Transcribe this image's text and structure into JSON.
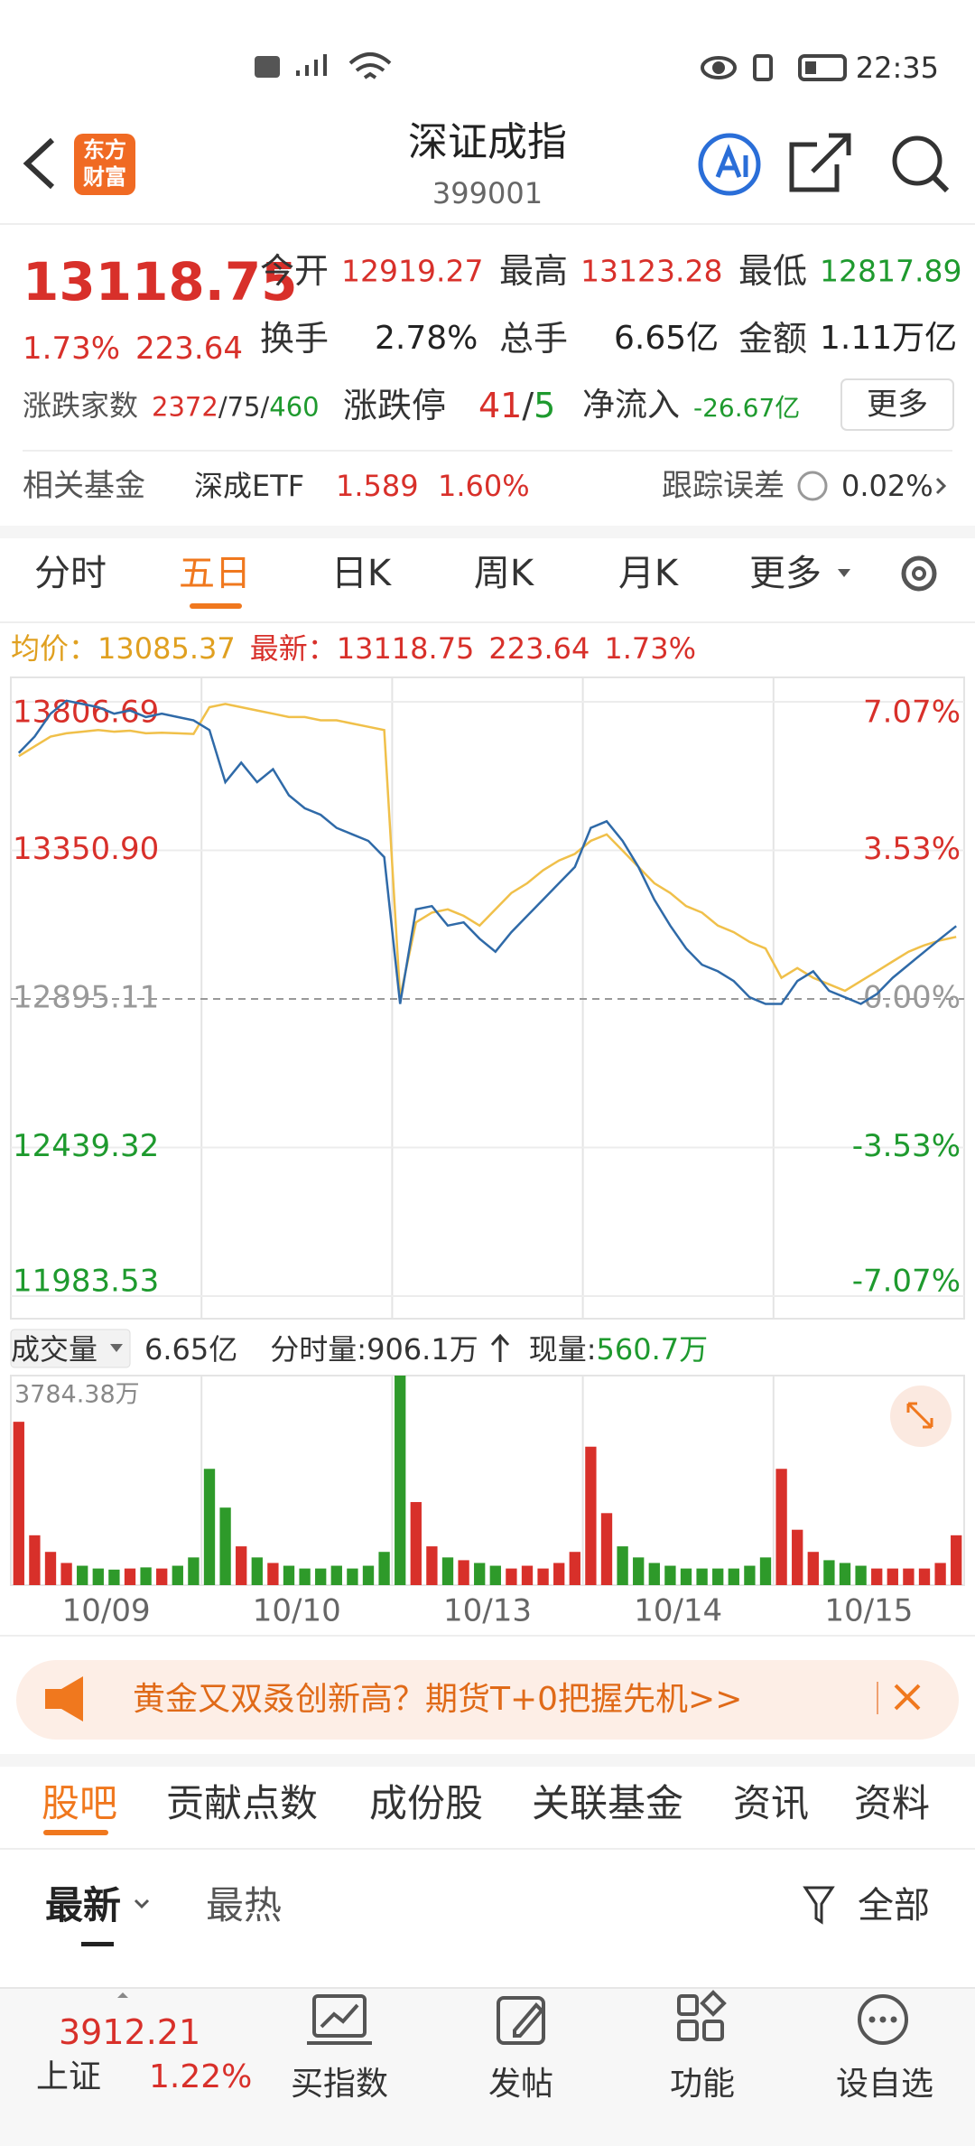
{
  "status_bar": {
    "time": "22:35"
  },
  "header": {
    "logo": [
      "东方",
      "财富"
    ],
    "title": "深证成指",
    "code": "399001"
  },
  "quote": {
    "price": "13118.75",
    "change_pct": "1.73%",
    "change": "223.64",
    "row1": [
      {
        "label": "今开",
        "value": "12919.27"
      },
      {
        "label": "最高",
        "value": "13123.28"
      },
      {
        "label": "最低",
        "value": "12817.89"
      }
    ],
    "row2": [
      {
        "label": "换手",
        "value": "2.78%"
      },
      {
        "label": "总手",
        "value": "6.65亿"
      },
      {
        "label": "金额",
        "value": "1.11万亿"
      }
    ],
    "breadth": {
      "label": "涨跌家数",
      "parts": [
        "2372",
        "/75/",
        "460"
      ]
    },
    "limit": {
      "label": "涨跌停",
      "up": "41",
      "sep": "/",
      "down": "5"
    },
    "net_flow": {
      "label": "净流入",
      "value": "-26.67亿"
    },
    "more": "更多"
  },
  "fund": {
    "label": "相关基金",
    "name": "深成ETF",
    "price": "1.589",
    "pct": "1.60%",
    "tracking_label": "跟踪误差",
    "tracking": "0.02%"
  },
  "tabs": {
    "items": [
      "分时",
      "五日",
      "日K",
      "周K",
      "月K",
      "更多"
    ],
    "active": 1
  },
  "chart_data": {
    "type": "line",
    "info": {
      "avg_label": "均价：",
      "avg": "13085.37",
      "latest_label": "最新：",
      "latest": "13118.75",
      "change": "223.64",
      "pct": "1.73%"
    },
    "ylim": [
      11983.53,
      13806.69
    ],
    "yticks": [
      11983.53,
      12439.32,
      12895.11,
      {
        "value": 13350.9,
        "label": "13350.90"
      },
      13806.69
    ],
    "y2lim": [
      -7.07,
      7.07
    ],
    "y2ticks": [
      {
        "value": -7.07,
        "label": "-7.07%"
      },
      {
        "value": -3.53,
        "label": "-3.53%"
      },
      {
        "value": 0,
        "label": "0.00%"
      },
      {
        "value": 3.53,
        "label": "3.53%"
      },
      {
        "value": 7.07,
        "label": "7.07%"
      }
    ],
    "day_labels": [
      "10/09",
      "10/10",
      "10/13",
      "10/14",
      "10/15"
    ],
    "grid": true,
    "series": [
      {
        "color": "#2f6aa8",
        "values": [
          13650,
          13700,
          13770,
          13810,
          13800,
          13790,
          13770,
          13780,
          13760,
          13770,
          13760,
          13750,
          13720,
          13560,
          13620,
          13560,
          13600,
          13520,
          13480,
          13460,
          13420,
          13400,
          13380,
          13330,
          12880,
          13170,
          13180,
          13120,
          13130,
          13080,
          13040,
          13100,
          13150,
          13200,
          13250,
          13300,
          13420,
          13440,
          13380,
          13300,
          13200,
          13120,
          13050,
          13000,
          12980,
          12950,
          12900,
          12880,
          12880,
          12950,
          12980,
          12920,
          12900,
          12880,
          12910,
          12960,
          13000,
          13040,
          13080,
          13118.75
        ]
      },
      {
        "color": "#f0c04a",
        "values": [
          13640,
          13670,
          13700,
          13710,
          13715,
          13720,
          13715,
          13718,
          13710,
          13712,
          13710,
          13708,
          13790,
          13800,
          13790,
          13780,
          13770,
          13760,
          13760,
          13750,
          13750,
          13740,
          13730,
          13720,
          12900,
          13130,
          13160,
          13170,
          13150,
          13120,
          13170,
          13220,
          13250,
          13290,
          13320,
          13340,
          13380,
          13400,
          13350,
          13300,
          13250,
          13220,
          13180,
          13160,
          13120,
          13100,
          13070,
          13050,
          12960,
          12990,
          12960,
          12940,
          12920,
          12950,
          12980,
          13010,
          13040,
          13060,
          13075,
          13085.37
        ]
      }
    ],
    "volume": {
      "label": "成交量",
      "total": "6.65亿",
      "tick_label": "分时量:",
      "tick": "906.1万",
      "now_label": "现量:",
      "now": "560.7万",
      "ylim": [
        0,
        3784.38
      ],
      "yticks": [
        {
          "value": 3784.38,
          "label": "3784.38万"
        }
      ],
      "up_color": "#d8302a",
      "down_color": "#2e9a2a",
      "values": [
        2950,
        900,
        600,
        400,
        350,
        300,
        280,
        300,
        320,
        300,
        350,
        500,
        2100,
        1400,
        700,
        500,
        400,
        350,
        300,
        300,
        350,
        300,
        350,
        600,
        3784.38,
        1500,
        700,
        500,
        450,
        400,
        350,
        300,
        350,
        300,
        400,
        600,
        2500,
        1300,
        700,
        500,
        400,
        350,
        300,
        300,
        300,
        300,
        350,
        500,
        2100,
        1000,
        600,
        450,
        400,
        350,
        300,
        300,
        300,
        300,
        400,
        900
      ]
    }
  },
  "banner": {
    "text": "黄金又双叒创新高？期货T+0把握先机>>"
  },
  "sub_tabs": {
    "items": [
      "股吧",
      "贡献点数",
      "成份股",
      "关联基金",
      "资讯",
      "资料"
    ],
    "active": 0
  },
  "filter": {
    "items": [
      "最新",
      "最热"
    ],
    "all": "全部"
  },
  "bottom_nav": {
    "index_value": "3912.21",
    "index_name": "上证",
    "index_pct": "1.22%",
    "items": [
      "买指数",
      "发帖",
      "功能",
      "设自选"
    ]
  }
}
